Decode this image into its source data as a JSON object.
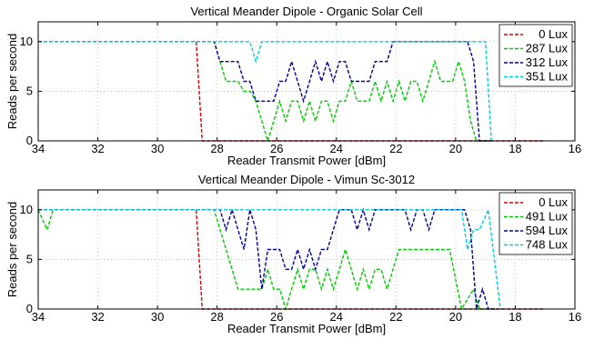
{
  "chart_data": [
    {
      "type": "line",
      "title": "Vertical Meander Dipole - Organic Solar Cell",
      "xlabel": "Reader Transmit Power [dBm]",
      "ylabel": "Reads per second",
      "xlim": [
        34,
        16
      ],
      "ylim": [
        0,
        12
      ],
      "x_reversed": true,
      "xticks": [
        34,
        32,
        30,
        28,
        26,
        24,
        22,
        20,
        18,
        16
      ],
      "yticks": [
        0,
        5,
        10
      ],
      "grid": true,
      "legend_position": "top-right",
      "series": [
        {
          "name": "0 Lux",
          "color": "#dd0000",
          "points": [
            [
              34,
              10
            ],
            [
              29,
              10
            ],
            [
              28.7,
              10
            ],
            [
              28.5,
              0
            ],
            [
              17,
              0
            ]
          ]
        },
        {
          "name": "287 Lux",
          "color": "#00cc00",
          "points": [
            [
              34,
              10
            ],
            [
              28.1,
              10
            ],
            [
              27.9,
              8
            ],
            [
              27.7,
              6
            ],
            [
              27.3,
              6
            ],
            [
              27.1,
              5
            ],
            [
              26.9,
              5
            ],
            [
              26.7,
              4
            ],
            [
              26.5,
              2
            ],
            [
              26.3,
              0
            ],
            [
              26.1,
              2
            ],
            [
              25.9,
              4
            ],
            [
              25.7,
              2
            ],
            [
              25.5,
              4
            ],
            [
              25.3,
              4
            ],
            [
              25.1,
              2
            ],
            [
              24.9,
              4
            ],
            [
              24.7,
              2
            ],
            [
              24.5,
              4
            ],
            [
              24.3,
              4
            ],
            [
              24.1,
              2
            ],
            [
              23.9,
              4
            ],
            [
              23.7,
              4
            ],
            [
              23.5,
              6
            ],
            [
              23.3,
              4
            ],
            [
              23.1,
              4
            ],
            [
              22.9,
              4
            ],
            [
              22.7,
              6
            ],
            [
              22.5,
              4
            ],
            [
              22.3,
              6
            ],
            [
              22.1,
              4
            ],
            [
              21.9,
              6
            ],
            [
              21.7,
              4
            ],
            [
              21.5,
              6
            ],
            [
              21.3,
              6
            ],
            [
              21.1,
              4
            ],
            [
              20.9,
              6
            ],
            [
              20.7,
              8
            ],
            [
              20.5,
              6
            ],
            [
              20.3,
              6
            ],
            [
              20.1,
              6
            ],
            [
              19.9,
              8
            ],
            [
              19.7,
              6
            ],
            [
              19.5,
              2
            ],
            [
              19.3,
              0
            ],
            [
              18.8,
              0
            ]
          ]
        },
        {
          "name": "312 Lux",
          "color": "#000099",
          "points": [
            [
              34,
              10
            ],
            [
              28.1,
              10
            ],
            [
              27.9,
              8
            ],
            [
              27.3,
              8
            ],
            [
              27.1,
              6
            ],
            [
              26.9,
              6
            ],
            [
              26.7,
              4
            ],
            [
              26.1,
              4
            ],
            [
              25.9,
              6
            ],
            [
              25.7,
              6
            ],
            [
              25.5,
              8
            ],
            [
              25.3,
              6
            ],
            [
              25.1,
              4
            ],
            [
              24.9,
              6
            ],
            [
              24.7,
              8
            ],
            [
              24.5,
              6
            ],
            [
              24.3,
              8
            ],
            [
              24.1,
              6
            ],
            [
              23.9,
              8
            ],
            [
              23.7,
              8
            ],
            [
              23.5,
              6
            ],
            [
              22.9,
              6
            ],
            [
              22.7,
              8
            ],
            [
              22.3,
              8
            ],
            [
              22.1,
              10
            ],
            [
              19.6,
              10
            ],
            [
              19.4,
              8
            ],
            [
              19.2,
              0
            ],
            [
              18.8,
              0
            ]
          ]
        },
        {
          "name": "351 Lux",
          "color": "#00ccdd",
          "points": [
            [
              34,
              10
            ],
            [
              26.9,
              10
            ],
            [
              26.7,
              8
            ],
            [
              26.5,
              10
            ],
            [
              19.2,
              10
            ],
            [
              19.0,
              10
            ],
            [
              18.8,
              0
            ]
          ]
        }
      ]
    },
    {
      "type": "line",
      "title": "Vertical Meander Dipole - Vimun Sc-3012",
      "xlabel": "Reader Transmit Power [dBm]",
      "ylabel": "Reads per second",
      "xlim": [
        34,
        16
      ],
      "ylim": [
        0,
        12
      ],
      "x_reversed": true,
      "xticks": [
        34,
        32,
        30,
        28,
        26,
        24,
        22,
        20,
        18,
        16
      ],
      "yticks": [
        0,
        5,
        10
      ],
      "grid": true,
      "legend_position": "top-right",
      "series": [
        {
          "name": "0 Lux",
          "color": "#dd0000",
          "points": [
            [
              34,
              10
            ],
            [
              28.7,
              10
            ],
            [
              28.5,
              0
            ],
            [
              17,
              0
            ]
          ]
        },
        {
          "name": "491 Lux",
          "color": "#00cc00",
          "points": [
            [
              34,
              10
            ],
            [
              33.7,
              8
            ],
            [
              33.5,
              10
            ],
            [
              28.1,
              10
            ],
            [
              27.9,
              8
            ],
            [
              27.7,
              6
            ],
            [
              27.5,
              4
            ],
            [
              27.3,
              2
            ],
            [
              26.7,
              2
            ],
            [
              26.5,
              2
            ],
            [
              26.3,
              4
            ],
            [
              26.1,
              2
            ],
            [
              25.9,
              2
            ],
            [
              25.7,
              0
            ],
            [
              25.5,
              2
            ],
            [
              25.3,
              4
            ],
            [
              25.1,
              2
            ],
            [
              24.9,
              4
            ],
            [
              24.7,
              4
            ],
            [
              24.5,
              2
            ],
            [
              24.3,
              4
            ],
            [
              24.1,
              2
            ],
            [
              23.9,
              4
            ],
            [
              23.7,
              6
            ],
            [
              23.5,
              4
            ],
            [
              23.3,
              2
            ],
            [
              23.1,
              4
            ],
            [
              22.9,
              2
            ],
            [
              22.7,
              4
            ],
            [
              22.5,
              4
            ],
            [
              22.3,
              2
            ],
            [
              22.1,
              4
            ],
            [
              21.9,
              6
            ],
            [
              20.2,
              6
            ],
            [
              19.8,
              0
            ],
            [
              19.4,
              2
            ],
            [
              19.2,
              0
            ],
            [
              18.8,
              0
            ]
          ]
        },
        {
          "name": "594 Lux",
          "color": "#000099",
          "points": [
            [
              34,
              10
            ],
            [
              28.1,
              10
            ],
            [
              27.9,
              10
            ],
            [
              27.7,
              8
            ],
            [
              27.5,
              10
            ],
            [
              27.3,
              8
            ],
            [
              27.1,
              6
            ],
            [
              26.9,
              10
            ],
            [
              26.7,
              8
            ],
            [
              26.5,
              2
            ],
            [
              26.3,
              6
            ],
            [
              26.1,
              6
            ],
            [
              25.9,
              6
            ],
            [
              25.7,
              4
            ],
            [
              25.5,
              4
            ],
            [
              25.3,
              6
            ],
            [
              25.1,
              4
            ],
            [
              24.9,
              6
            ],
            [
              24.7,
              4
            ],
            [
              24.5,
              6
            ],
            [
              24.3,
              6
            ],
            [
              24.1,
              8
            ],
            [
              23.9,
              10
            ],
            [
              23.5,
              10
            ],
            [
              23.3,
              8
            ],
            [
              23.1,
              10
            ],
            [
              22.9,
              8
            ],
            [
              22.7,
              10
            ],
            [
              21.7,
              10
            ],
            [
              21.5,
              8
            ],
            [
              21.3,
              10
            ],
            [
              21.1,
              10
            ],
            [
              20.9,
              8
            ],
            [
              20.7,
              10
            ],
            [
              19.7,
              10
            ],
            [
              19.5,
              8
            ],
            [
              19.3,
              0
            ],
            [
              19.1,
              2
            ],
            [
              18.9,
              0
            ],
            [
              18.6,
              0
            ]
          ]
        },
        {
          "name": "748 Lux",
          "color": "#00ccdd",
          "points": [
            [
              34,
              10
            ],
            [
              19.8,
              10
            ],
            [
              19.6,
              6
            ],
            [
              19.4,
              8
            ],
            [
              19.2,
              8
            ],
            [
              18.9,
              10
            ],
            [
              18.5,
              0
            ]
          ]
        }
      ]
    }
  ]
}
